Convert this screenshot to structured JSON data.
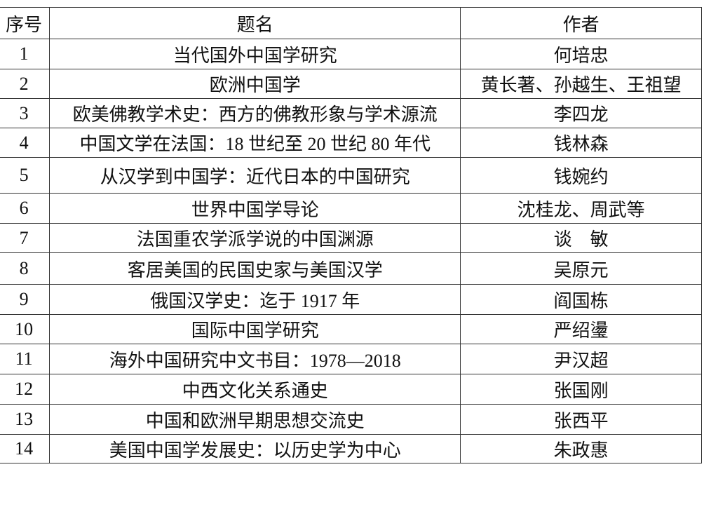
{
  "table": {
    "header": [
      "序号",
      "题名",
      "作者"
    ],
    "rows": [
      [
        "1",
        "当代国外中国学研究",
        "何培忠"
      ],
      [
        "2",
        "欧洲中国学",
        "黄长著、孙越生、王祖望"
      ],
      [
        "3",
        "欧美佛教学术史：西方的佛教形象与学术源流",
        "李四龙"
      ],
      [
        "4",
        "中国文学在法国：18 世纪至 20 世纪 80 年代",
        "钱林森"
      ],
      [
        "5",
        "从汉学到中国学：近代日本的中国研究",
        "钱婉约"
      ],
      [
        "6",
        "世界中国学导论",
        "沈桂龙、周武等"
      ],
      [
        "7",
        "法国重农学派学说的中国渊源",
        "谈　敏"
      ],
      [
        "8",
        "客居美国的民国史家与美国汉学",
        "吴原元"
      ],
      [
        "9",
        "俄国汉学史：迄于 1917 年",
        "阎国栋"
      ],
      [
        "10",
        "国际中国学研究",
        "严绍璗"
      ],
      [
        "11",
        "海外中国研究中文书目：1978—2018",
        "尹汉超"
      ],
      [
        "12",
        "中西文化关系通史",
        "张国刚"
      ],
      [
        "13",
        "中国和欧洲早期思想交流史",
        "张西平"
      ],
      [
        "14",
        "美国中国学发展史：以历史学为中心",
        "朱政惠"
      ]
    ]
  }
}
